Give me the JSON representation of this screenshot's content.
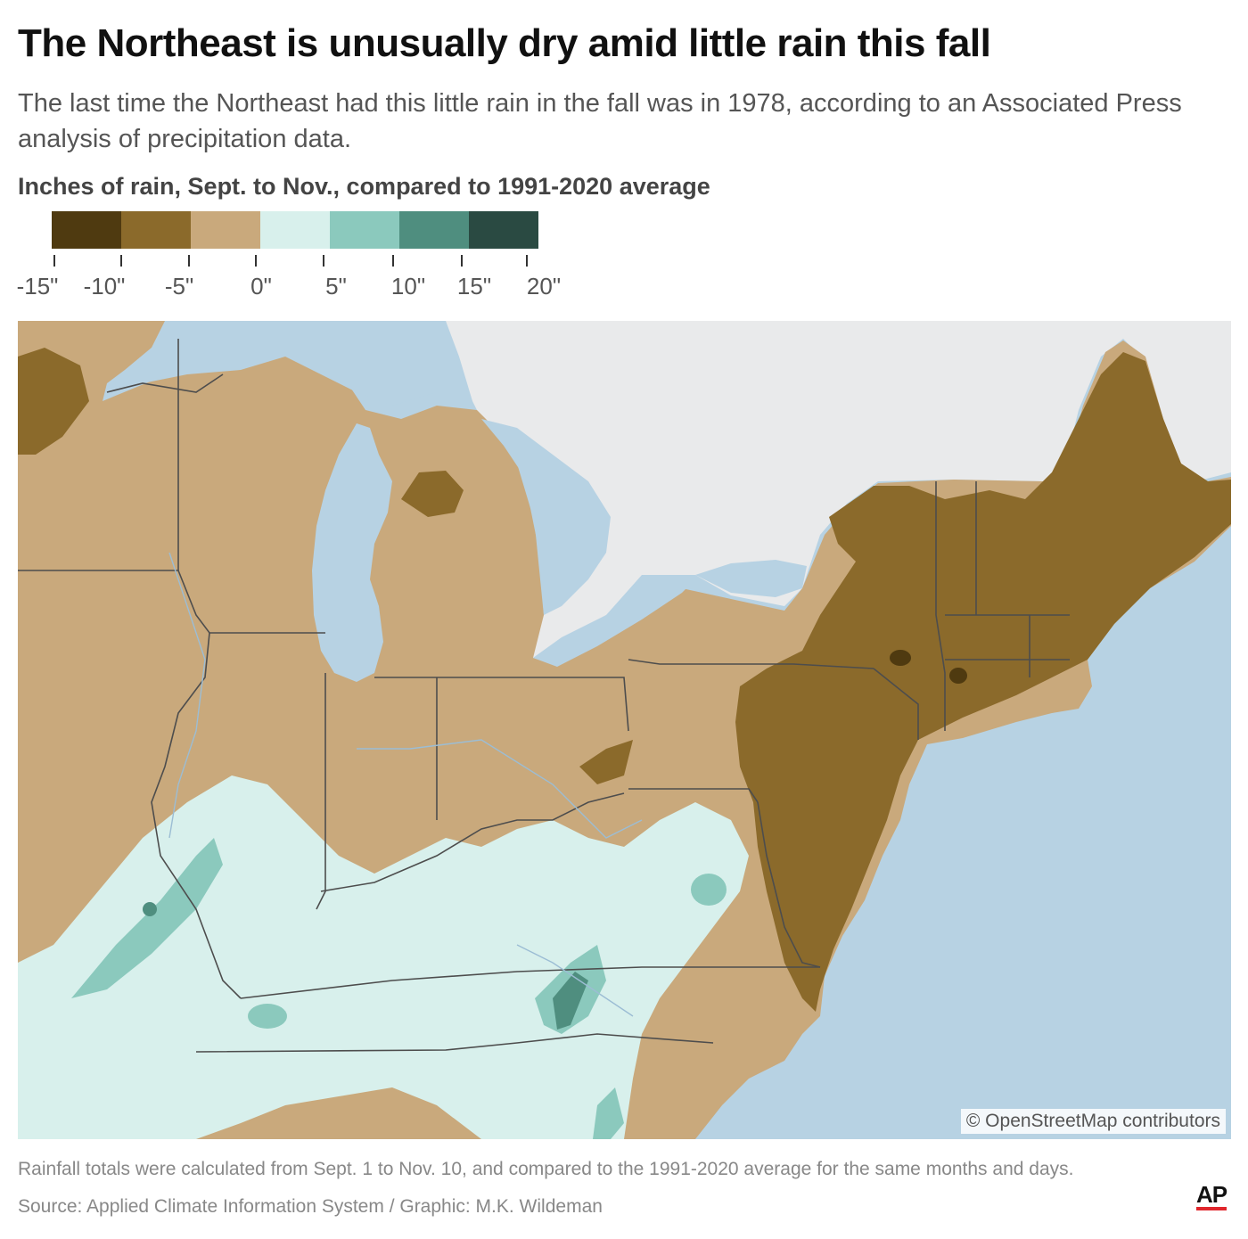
{
  "header": {
    "title": "The Northeast is unusually dry amid little rain this fall",
    "subtitle": "The last time the Northeast had this little rain in the fall was in 1978, according to an Associated Press analysis of precipitation data."
  },
  "legend": {
    "title": "Inches of rain, Sept. to Nov., compared to 1991-2020 average",
    "tick_labels": [
      "-15\"",
      "-10\"",
      "-5\"",
      "0\"",
      "5\"",
      "10\"",
      "15\"",
      "20\""
    ],
    "colors": [
      "#4f3a10",
      "#8b6a2b",
      "#c9a97c",
      "#d8f0ec",
      "#8bc9bd",
      "#4f8e7f",
      "#2a4a42"
    ]
  },
  "map": {
    "attribution": "© OpenStreetMap contributors",
    "colors": {
      "water": "#b7d2e3",
      "canada": "#e9eaeb",
      "below_0_to_minus5": "#c9a97c",
      "below_5_to_10": "#8b6a2b",
      "below_10_to_15": "#4f3a10",
      "above_0_to_5": "#d8f0ec",
      "above_5_to_10": "#8bc9bd",
      "above_10_to_15": "#4f8e7f",
      "above_15_to_20": "#2a4a42",
      "borders": "#4d4d4d"
    }
  },
  "footer": {
    "note": "Rainfall totals were calculated from Sept. 1 to Nov. 10, and compared to the 1991-2020 average for the same months and days.",
    "source": "Source: Applied Climate Information System / Graphic: M.K. Wildeman",
    "logo": "AP"
  }
}
